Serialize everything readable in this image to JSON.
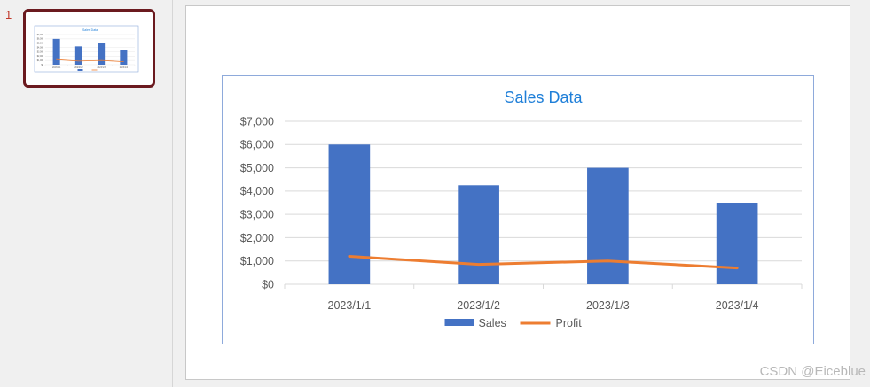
{
  "slide_panel": {
    "slide_number": "1"
  },
  "watermark": "CSDN @Eiceblue",
  "colors": {
    "sales": "#4472c4",
    "profit": "#ed7d31",
    "title": "#1f7fd8",
    "grid": "#d9d9d9",
    "axis_text": "#595959"
  },
  "chart_data": {
    "type": "bar",
    "title": "Sales Data",
    "categories": [
      "2023/1/1",
      "2023/1/2",
      "2023/1/3",
      "2023/1/4"
    ],
    "series": [
      {
        "name": "Sales",
        "type": "bar",
        "values": [
          6000,
          4250,
          5000,
          3500
        ]
      },
      {
        "name": "Profit",
        "type": "line",
        "values": [
          1200,
          850,
          1000,
          700
        ]
      }
    ],
    "ylim": [
      0,
      7000
    ],
    "yticks": [
      "$0",
      "$1,000",
      "$2,000",
      "$3,000",
      "$4,000",
      "$5,000",
      "$6,000",
      "$7,000"
    ],
    "ytick_values": [
      0,
      1000,
      2000,
      3000,
      4000,
      5000,
      6000,
      7000
    ],
    "grid": true,
    "legend": "bottom"
  }
}
